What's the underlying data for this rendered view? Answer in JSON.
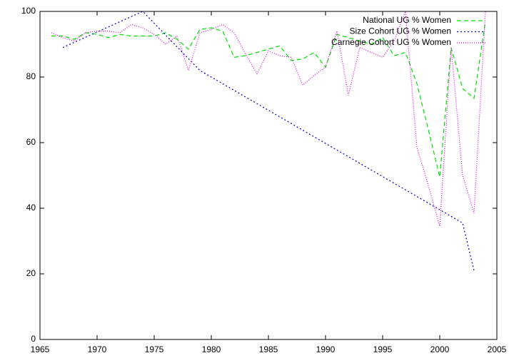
{
  "chart_data": {
    "type": "line",
    "xlim": [
      1965,
      2005
    ],
    "xticks": [
      1965,
      1970,
      1975,
      1980,
      1985,
      1990,
      1995,
      2000,
      2005
    ],
    "ylim": [
      0,
      100
    ],
    "yticks": [
      0,
      20,
      40,
      60,
      80,
      100
    ],
    "legend": "top-right",
    "series": [
      {
        "name": "National UG % Women",
        "color": "#00e000",
        "dash": "6,4",
        "x": [
          1966,
          1967,
          1968,
          1969,
          1970,
          1971,
          1972,
          1973,
          1974,
          1975,
          1976,
          1977,
          1978,
          1979,
          1980,
          1981,
          1982,
          1983,
          1984,
          1985,
          1986,
          1987,
          1988,
          1989,
          1990,
          1991,
          1992,
          1993,
          1994,
          1995,
          1996,
          1997,
          1998,
          1999,
          2000,
          2001,
          2002,
          2003,
          2004
        ],
        "values": [
          92.5,
          92.5,
          91.5,
          93.5,
          93,
          92,
          93,
          92.5,
          92.5,
          92.5,
          93.5,
          91.5,
          88.5,
          94.5,
          95,
          94,
          86,
          86.5,
          87.5,
          88.5,
          89.5,
          85,
          85.5,
          87.5,
          83,
          93,
          92,
          91,
          90,
          92,
          86.5,
          87.5,
          78,
          64,
          49.5,
          89,
          76.5,
          73.5,
          97
        ]
      },
      {
        "name": "Size Cohort UG % Women",
        "color": "#0000c0",
        "dash": "2,3",
        "x": [
          1967,
          1974,
          1979,
          2002,
          2003
        ],
        "values": [
          89,
          100,
          82,
          35.5,
          21
        ]
      },
      {
        "name": "Carnegie Cohort UG % Women",
        "color": "#e000e0",
        "dash": "1,2",
        "x": [
          1966,
          1967,
          1968,
          1969,
          1970,
          1971,
          1972,
          1973,
          1974,
          1975,
          1976,
          1977,
          1978,
          1979,
          1980,
          1981,
          1982,
          1983,
          1984,
          1985,
          1986,
          1987,
          1988,
          1989,
          1990,
          1991,
          1992,
          1993,
          1994,
          1995,
          1996,
          1997,
          1998,
          1999,
          2000,
          2001,
          2002,
          2003,
          2004
        ],
        "values": [
          93.5,
          92,
          91,
          93.5,
          94,
          94,
          93.5,
          96,
          95,
          93,
          90,
          92.5,
          82,
          93.5,
          94.5,
          96,
          93.5,
          87,
          81,
          88,
          86.5,
          86,
          77.5,
          80.5,
          83,
          94,
          74.5,
          89,
          87.5,
          86,
          91,
          100,
          58.5,
          47,
          34.5,
          89,
          50,
          38.5,
          100
        ]
      }
    ]
  }
}
